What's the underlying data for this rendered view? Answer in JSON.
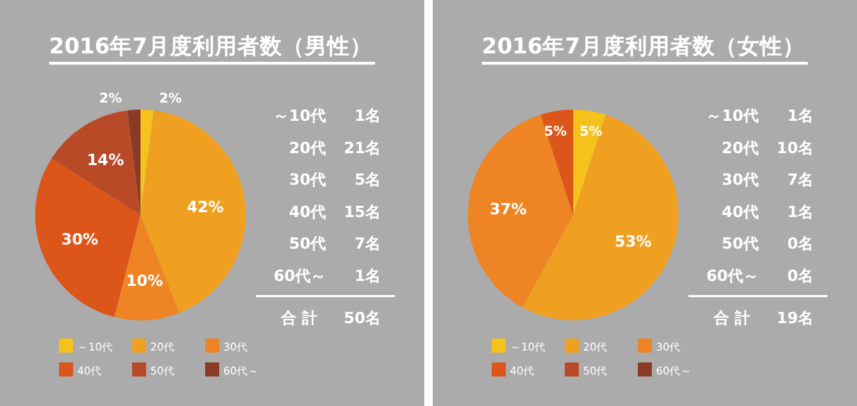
{
  "chart_data": [
    {
      "type": "pie",
      "title": "2016年7月度利用者数（男性）",
      "categories": [
        "～10代",
        "20代",
        "30代",
        "40代",
        "50代",
        "60代～"
      ],
      "values": [
        2,
        42,
        10,
        30,
        14,
        2
      ],
      "colors": [
        "#f5c21b",
        "#f0a020",
        "#ee8423",
        "#dc5519",
        "#b94a28",
        "#8a3b26"
      ],
      "value_labels": [
        "2%",
        "42%",
        "10%",
        "30%",
        "14%",
        "2%"
      ],
      "legend": "bottom",
      "annotations": [
        "～10代 1名",
        "20代 21名",
        "30代 5名",
        "40代 15名",
        "50代 7名",
        "60代～ 1名",
        "合 計 50名"
      ]
    },
    {
      "type": "pie",
      "title": "2016年7月度利用者数（女性）",
      "categories": [
        "～10代",
        "20代",
        "30代",
        "40代",
        "50代",
        "60代～"
      ],
      "values": [
        5,
        53,
        37,
        5,
        0,
        0
      ],
      "colors": [
        "#f5c21b",
        "#f0a020",
        "#ee8423",
        "#dc5519",
        "#b94a28",
        "#8a3b26"
      ],
      "value_labels": [
        "5%",
        "53%",
        "37%",
        "5%",
        null,
        null
      ],
      "legend": "bottom",
      "annotations": [
        "～10代 1名",
        "20代 10名",
        "30代 7名",
        "40代 1名",
        "50代 0名",
        "60代～ 0名",
        "合 計 19名"
      ]
    }
  ]
}
